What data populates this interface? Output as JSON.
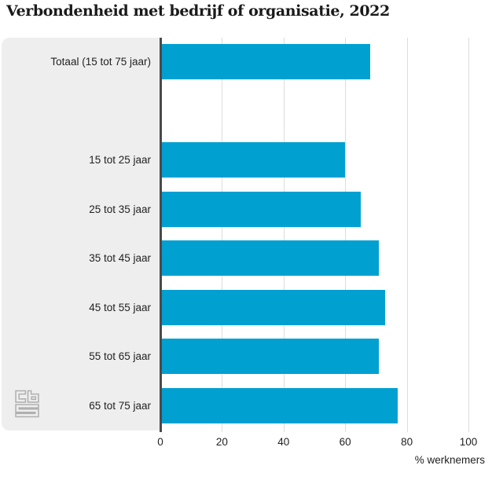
{
  "title": "Verbondenheid met bedrijf of organisatie, 2022",
  "branding": {
    "logo_name": "cbs"
  },
  "colors": {
    "bar": "#00a0d1",
    "panel": "#eeeeee",
    "gridline": "#dcdcdc",
    "axis_line": "#4a4a4a",
    "text": "#222222"
  },
  "chart_data": {
    "type": "bar",
    "orientation": "horizontal",
    "title": "Verbondenheid met bedrijf of organisatie, 2022",
    "categories": [
      "Totaal (15 tot 75 jaar)",
      "15 tot 25 jaar",
      "25 tot 35 jaar",
      "35 tot 45 jaar",
      "45 tot 55 jaar",
      "55 tot 65 jaar",
      "65 tot 75 jaar"
    ],
    "values": [
      68,
      60,
      65,
      71,
      73,
      71,
      77
    ],
    "xlabel": "% werknemers",
    "ylabel": "",
    "xlim": [
      0,
      100
    ],
    "x_ticks": [
      0,
      20,
      40,
      60,
      80,
      100
    ],
    "grid": true,
    "legend": false,
    "bar_color": "#00a0d1",
    "gap_after_first_row": true
  }
}
